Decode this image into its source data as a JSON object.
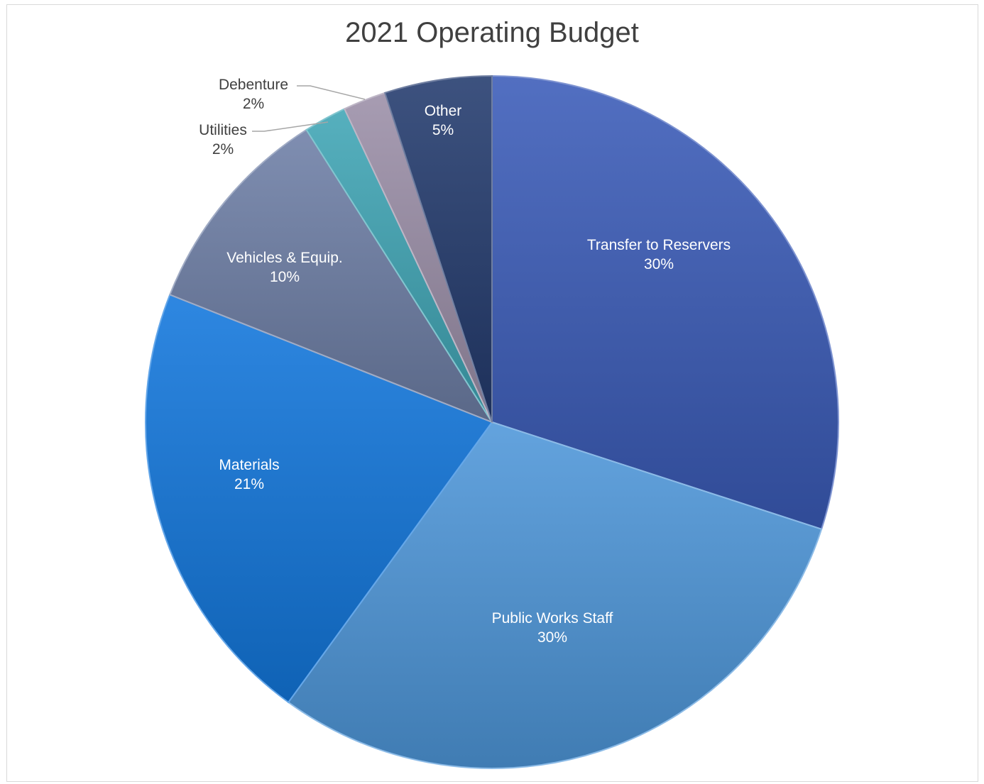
{
  "chart_data": {
    "type": "pie",
    "title": "2021 Operating Budget",
    "slices": [
      {
        "label": "Transfer to Reservers",
        "value": 30,
        "value_label": "30%",
        "color": "#3a5bb8",
        "label_color": "#ffffff"
      },
      {
        "label": "Public Works Staff",
        "value": 30,
        "value_label": "30%",
        "color": "#4e97da",
        "label_color": "#ffffff"
      },
      {
        "label": "Materials",
        "value": 21,
        "value_label": "21%",
        "color": "#1277dd",
        "label_color": "#ffffff"
      },
      {
        "label": "Vehicles & Equip.",
        "value": 10,
        "value_label": "10%",
        "color": "#6e7fa6",
        "label_color": "#ffffff"
      },
      {
        "label": "Utilities",
        "value": 2,
        "value_label": "2%",
        "color": "#3fa5b5",
        "label_color": "#404040"
      },
      {
        "label": "Debenture",
        "value": 2,
        "value_label": "2%",
        "color": "#9b8fa8",
        "label_color": "#404040"
      },
      {
        "label": "Other",
        "value": 5,
        "value_label": "5%",
        "color": "#233a6e",
        "label_color": "#ffffff"
      }
    ],
    "start_angle_deg": 0,
    "direction": "clockwise",
    "legend": "none",
    "data_labels": "category name and percentage"
  }
}
